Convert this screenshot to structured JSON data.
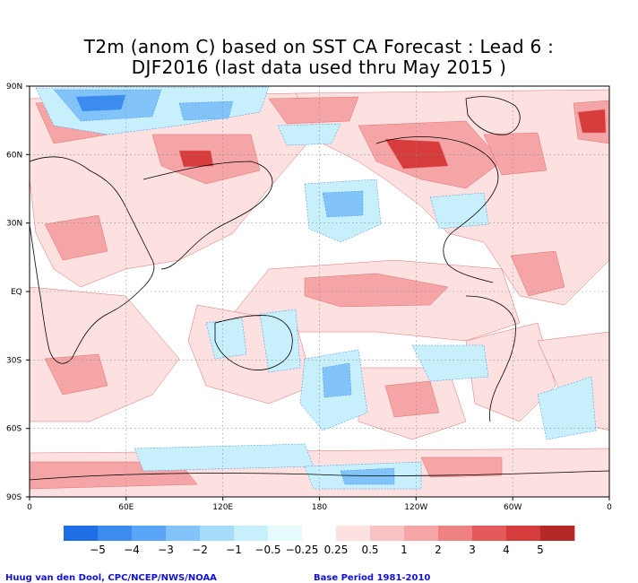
{
  "title": {
    "line1": "T2m (anom C) based on SST CA Forecast : Lead 6 :",
    "line2": "DJF2016 (last data used thru May 2015 )"
  },
  "axes": {
    "lat_ticks": [
      "90N",
      "60N",
      "30N",
      "EQ",
      "30S",
      "60S",
      "90S"
    ],
    "lon_ticks": [
      "0",
      "60E",
      "120E",
      "180",
      "120W",
      "60W",
      "0"
    ]
  },
  "colorbar": {
    "bins": [
      {
        "color": "#1e6ee6"
      },
      {
        "color": "#3c8cf0"
      },
      {
        "color": "#5aa5f5"
      },
      {
        "color": "#82c3fa"
      },
      {
        "color": "#a5dcfa"
      },
      {
        "color": "#c8f0fc"
      },
      {
        "color": "#e6fafc"
      },
      {
        "color": "#ffffff"
      },
      {
        "color": "#fde0e0"
      },
      {
        "color": "#f9c3c3"
      },
      {
        "color": "#f5a5a5"
      },
      {
        "color": "#ee8282"
      },
      {
        "color": "#e45a5a"
      },
      {
        "color": "#d63c3c"
      },
      {
        "color": "#b42828"
      }
    ],
    "labels": [
      "−5",
      "−4",
      "−3",
      "−2",
      "−1",
      "−0.5",
      "−0.25",
      "0.25",
      "0.5",
      "1",
      "2",
      "3",
      "4",
      "5"
    ]
  },
  "credits": {
    "left": "Huug van den Dool, CPC/NCEP/NWS/NOAA",
    "right": "Base Period 1981-2010"
  },
  "colors": {
    "pos_light": "#fde0e0",
    "pos_mid": "#f5a5a5",
    "pos_dark": "#d63c3c",
    "neg_light": "#c8f0fc",
    "neg_mid": "#82c3fa",
    "neg_dark": "#3c8cf0",
    "credit_text": "#1010e0"
  }
}
